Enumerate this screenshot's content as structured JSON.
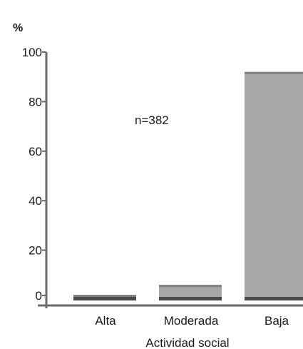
{
  "chart_data": {
    "type": "bar",
    "categories": [
      "Alta",
      "Moderada",
      "Baja"
    ],
    "values": [
      2,
      6,
      92
    ],
    "ylim": [
      0,
      100
    ],
    "yticks": [
      0,
      20,
      40,
      60,
      80,
      100
    ],
    "ylabel": "%",
    "xlabel": "Actividad social",
    "annotation": "n=382",
    "grid": false,
    "colors": {
      "bar_fill": "#a7a7a7",
      "bar_top": "#7f7f7f",
      "bar_dark": "#4a4a4a",
      "axis": "#6a6a6a"
    }
  }
}
